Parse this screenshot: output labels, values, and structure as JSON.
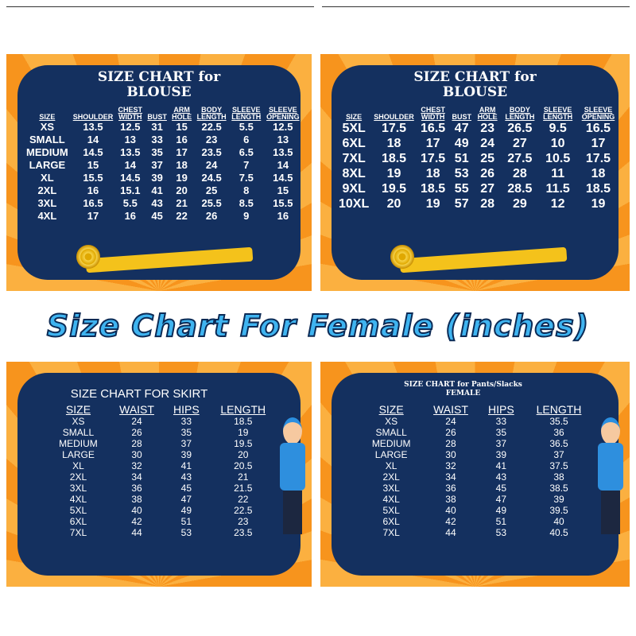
{
  "banner": "Size Chart For Female (inches)",
  "blouse1": {
    "title": "SIZE CHART for\nBLOUSE",
    "headers": [
      "SIZE",
      "SHOULDER",
      "CHEST WIDTH",
      "BUST",
      "ARM HOLE",
      "BODY LENGTH",
      "SLEEVE LENGTH",
      "SLEEVE OPENING"
    ],
    "rows": [
      [
        "XS",
        "13.5",
        "12.5",
        "31",
        "15",
        "22.5",
        "5.5",
        "12.5"
      ],
      [
        "SMALL",
        "14",
        "13",
        "33",
        "16",
        "23",
        "6",
        "13"
      ],
      [
        "MEDIUM",
        "14.5",
        "13.5",
        "35",
        "17",
        "23.5",
        "6.5",
        "13.5"
      ],
      [
        "LARGE",
        "15",
        "14",
        "37",
        "18",
        "24",
        "7",
        "14"
      ],
      [
        "XL",
        "15.5",
        "14.5",
        "39",
        "19",
        "24.5",
        "7.5",
        "14.5"
      ],
      [
        "2XL",
        "16",
        "15.1",
        "41",
        "20",
        "25",
        "8",
        "15"
      ],
      [
        "3XL",
        "16.5",
        "5.5",
        "43",
        "21",
        "25.5",
        "8.5",
        "15.5"
      ],
      [
        "4XL",
        "17",
        "16",
        "45",
        "22",
        "26",
        "9",
        "16"
      ]
    ]
  },
  "blouse2": {
    "title": "SIZE CHART for\nBLOUSE",
    "headers": [
      "SIZE",
      "SHOULDER",
      "CHEST WIDTH",
      "BUST",
      "ARM HOLE",
      "BODY LENGTH",
      "SLEEVE LENGTH",
      "SLEEVE OPENING"
    ],
    "rows": [
      [
        "5XL",
        "17.5",
        "16.5",
        "47",
        "23",
        "26.5",
        "9.5",
        "16.5"
      ],
      [
        "6XL",
        "18",
        "17",
        "49",
        "24",
        "27",
        "10",
        "17"
      ],
      [
        "7XL",
        "18.5",
        "17.5",
        "51",
        "25",
        "27.5",
        "10.5",
        "17.5"
      ],
      [
        "8XL",
        "19",
        "18",
        "53",
        "26",
        "28",
        "11",
        "18"
      ],
      [
        "9XL",
        "19.5",
        "18.5",
        "55",
        "27",
        "28.5",
        "11.5",
        "18.5"
      ],
      [
        "10XL",
        "20",
        "19",
        "57",
        "28",
        "29",
        "12",
        "19"
      ]
    ]
  },
  "skirt": {
    "title": "SIZE CHART FOR SKIRT",
    "headers": [
      "SIZE",
      "WAIST",
      "HIPS",
      "LENGTH"
    ],
    "rows": [
      [
        "XS",
        "24",
        "33",
        "18.5"
      ],
      [
        "SMALL",
        "26",
        "35",
        "19"
      ],
      [
        "MEDIUM",
        "28",
        "37",
        "19.5"
      ],
      [
        "LARGE",
        "30",
        "39",
        "20"
      ],
      [
        "XL",
        "32",
        "41",
        "20.5"
      ],
      [
        "2XL",
        "34",
        "43",
        "21"
      ],
      [
        "3XL",
        "36",
        "45",
        "21.5"
      ],
      [
        "4XL",
        "38",
        "47",
        "22"
      ],
      [
        "5XL",
        "40",
        "49",
        "22.5"
      ],
      [
        "6XL",
        "42",
        "51",
        "23"
      ],
      [
        "7XL",
        "44",
        "53",
        "23.5"
      ]
    ]
  },
  "pants": {
    "title": "SIZE CHART for  Pants/Slacks\nFEMALE",
    "headers": [
      "SIZE",
      "WAIST",
      "HIPS",
      "LENGTH"
    ],
    "rows": [
      [
        "XS",
        "24",
        "33",
        "35.5"
      ],
      [
        "SMALL",
        "26",
        "35",
        "36"
      ],
      [
        "MEDIUM",
        "28",
        "37",
        "36.5"
      ],
      [
        "LARGE",
        "30",
        "39",
        "37"
      ],
      [
        "XL",
        "32",
        "41",
        "37.5"
      ],
      [
        "2XL",
        "34",
        "43",
        "38"
      ],
      [
        "3XL",
        "36",
        "45",
        "38.5"
      ],
      [
        "4XL",
        "38",
        "47",
        "39"
      ],
      [
        "5XL",
        "40",
        "49",
        "39.5"
      ],
      [
        "6XL",
        "42",
        "51",
        "40"
      ],
      [
        "7XL",
        "44",
        "53",
        "40.5"
      ]
    ]
  },
  "colors": {
    "navy": "#14305f",
    "orange": "#f7941d",
    "banner": "#3fb4f0"
  }
}
